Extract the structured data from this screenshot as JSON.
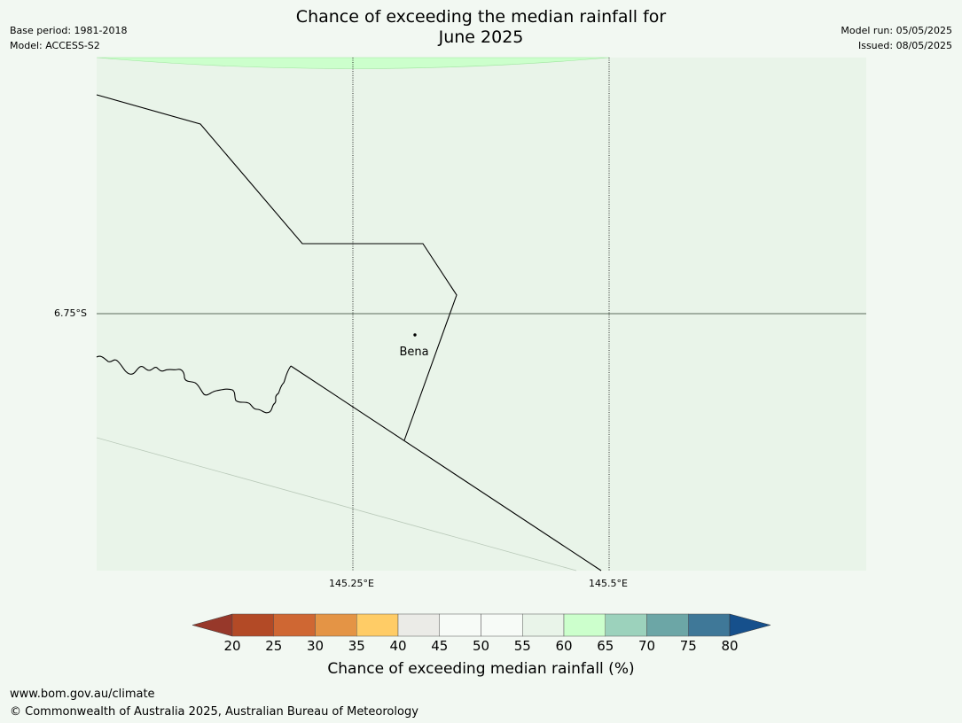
{
  "header": {
    "title_line1": "Chance of exceeding the median rainfall for",
    "title_line2": "June 2025",
    "base_period": "Base period: 1981-2018",
    "model": "Model: ACCESS-S2",
    "model_run": "Model run: 05/05/2025",
    "issued": "Issued: 08/05/2025"
  },
  "map": {
    "lat_label": "6.75°S",
    "lon_labels": [
      "145.25°E",
      "145.5°E"
    ],
    "place": {
      "name": "Bena"
    },
    "colors": {
      "background": "#f2f8f2",
      "map_fill": "#e9f4e9",
      "top_band": "#ccffcc"
    }
  },
  "colorbar": {
    "label": "Chance of exceeding median rainfall (%)",
    "ticks": [
      "20",
      "25",
      "30",
      "35",
      "40",
      "45",
      "50",
      "55",
      "60",
      "65",
      "70",
      "75",
      "80"
    ],
    "under_color": "#97382a",
    "over_color": "#16508c",
    "bins": [
      {
        "range": "20-25",
        "color": "#b34a26"
      },
      {
        "range": "25-30",
        "color": "#cf6733"
      },
      {
        "range": "30-35",
        "color": "#e49445"
      },
      {
        "range": "35-40",
        "color": "#ffcc66"
      },
      {
        "range": "40-45",
        "color": "#ebebe7"
      },
      {
        "range": "45-50",
        "color": "#f7fbf7"
      },
      {
        "range": "50-55",
        "color": "#f7fbf7"
      },
      {
        "range": "55-60",
        "color": "#e9f4e9"
      },
      {
        "range": "60-65",
        "color": "#ccffcc"
      },
      {
        "range": "65-70",
        "color": "#9cd2bc"
      },
      {
        "range": "70-75",
        "color": "#6ca6a6"
      },
      {
        "range": "75-80",
        "color": "#3f7898"
      }
    ]
  },
  "footer": {
    "url": "www.bom.gov.au/climate",
    "copyright": "© Commonwealth of Australia 2025, Australian Bureau of Meteorology"
  }
}
